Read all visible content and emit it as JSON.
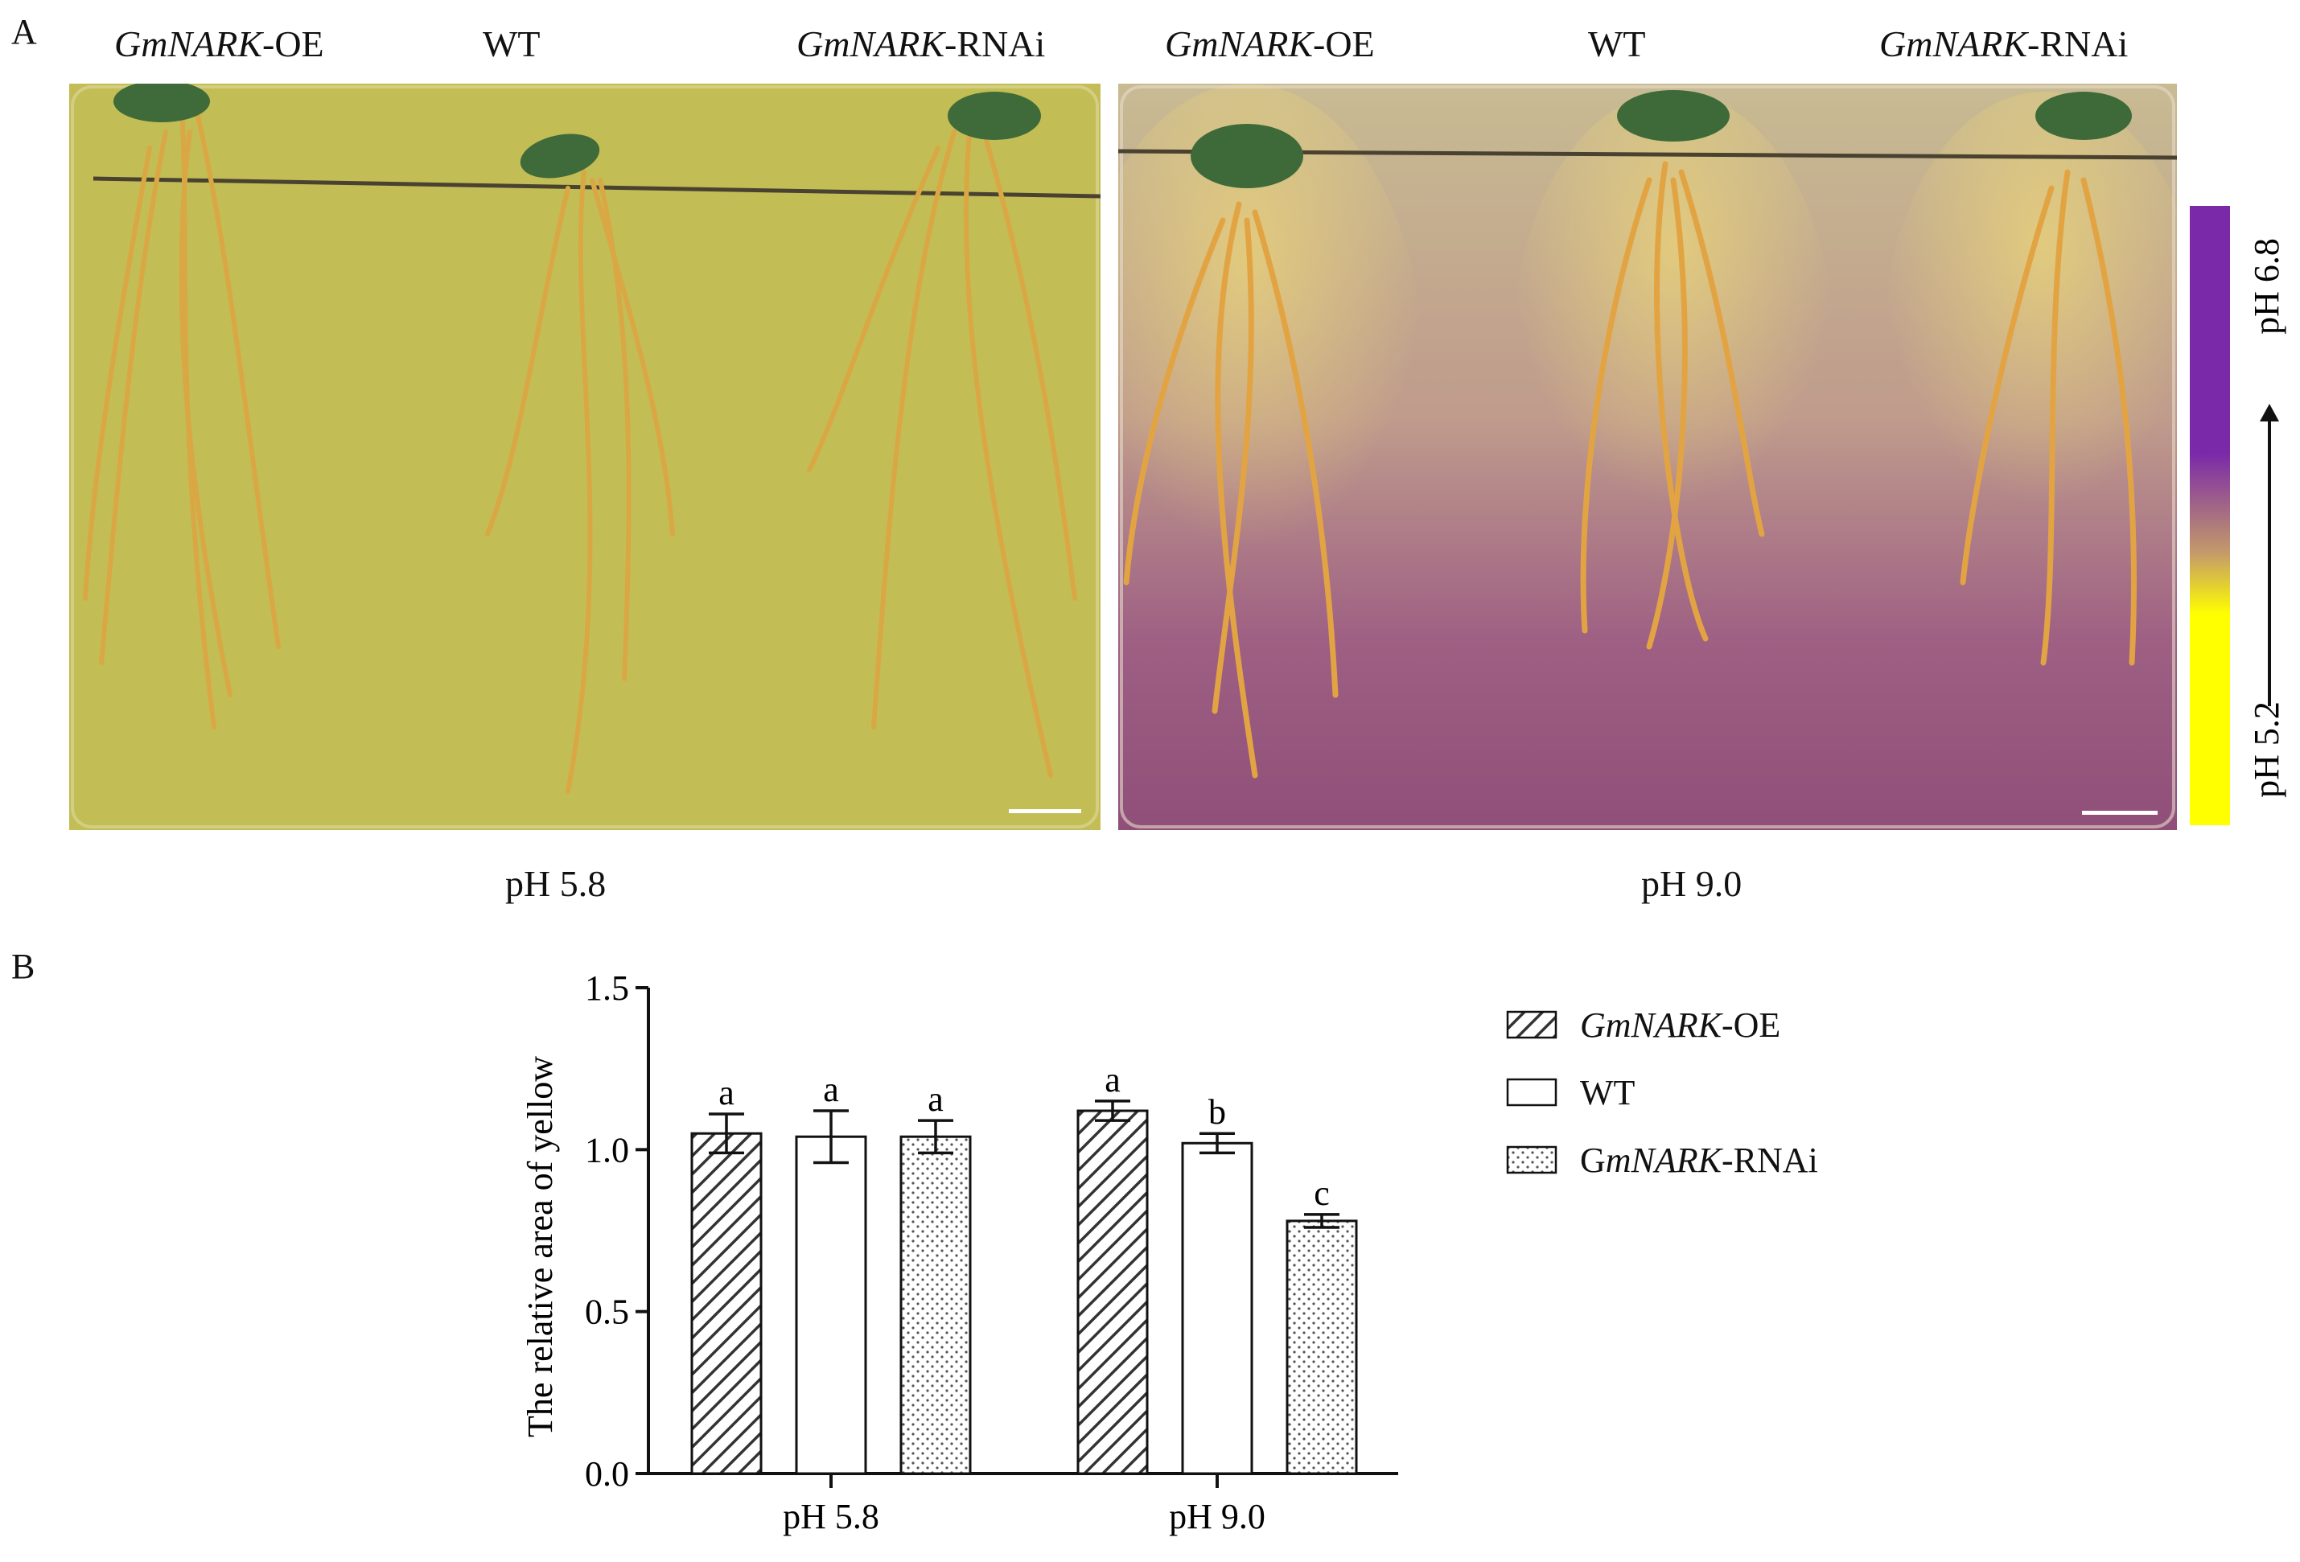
{
  "panel_a": {
    "letter": "A",
    "left_plate": {
      "labels": [
        {
          "italic": "GmNARK",
          "suffix": "-OE"
        },
        {
          "italic": "",
          "suffix": "WT"
        },
        {
          "italic": "GmNARK",
          "suffix": "-RNAi"
        }
      ],
      "caption": "pH 5.8",
      "medium_color": "#c3bd55"
    },
    "right_plate": {
      "labels": [
        {
          "italic": "GmNARK",
          "suffix": "-OE"
        },
        {
          "italic": "",
          "suffix": "WT"
        },
        {
          "italic": "GmNARK",
          "suffix": "-RNAi"
        }
      ],
      "caption": "pH 9.0",
      "medium_color": "#93507a"
    },
    "color_scale": {
      "top_label": "pH 6.8",
      "bottom_label": "pH 5.2",
      "top_color": "#7a2aa8",
      "bottom_color": "#ffff00"
    }
  },
  "panel_b": {
    "letter": "B",
    "legend": [
      {
        "italic": "GmNARK",
        "prefix": "",
        "suffix": "-OE",
        "pattern": "hatch"
      },
      {
        "italic": "",
        "prefix": "",
        "suffix": "WT",
        "pattern": "open"
      },
      {
        "italic": "mNARK",
        "prefix": "G",
        "suffix": "-RNAi",
        "pattern": "dots"
      }
    ]
  },
  "chart_data": {
    "type": "bar",
    "categories": [
      "pH 5.8",
      "pH 9.0"
    ],
    "ylabel": "The relative area of yellow",
    "xlabel": "",
    "ylim": [
      0,
      1.5
    ],
    "yticks": [
      "0.0",
      "0.5",
      "1.0",
      "1.5"
    ],
    "series": [
      {
        "name": "GmNARK-OE",
        "values": [
          1.05,
          1.12
        ],
        "errors": [
          0.06,
          0.03
        ],
        "letters": [
          "a",
          "a"
        ]
      },
      {
        "name": "WT",
        "values": [
          1.04,
          1.02
        ],
        "errors": [
          0.08,
          0.03
        ],
        "letters": [
          "a",
          "b"
        ]
      },
      {
        "name": "GmNARK-RNAi",
        "values": [
          1.04,
          0.78
        ],
        "errors": [
          0.05,
          0.02
        ],
        "letters": [
          "a",
          "c"
        ]
      }
    ]
  }
}
